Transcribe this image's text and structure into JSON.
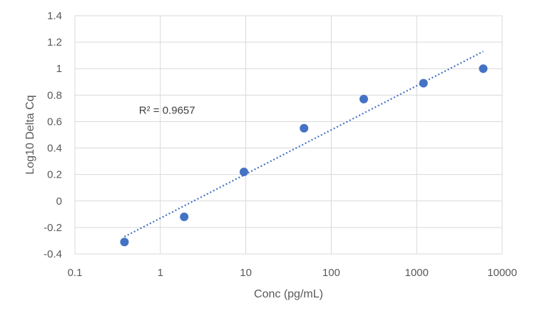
{
  "chart_data": {
    "type": "scatter",
    "title": "",
    "xlabel": "Conc (pg/mL)",
    "ylabel": "Log10 Delta Cq",
    "x_scale": "log",
    "xlim": [
      0.1,
      10000
    ],
    "ylim": [
      -0.4,
      1.4
    ],
    "x_ticks": [
      0.1,
      1,
      10,
      100,
      1000,
      10000
    ],
    "x_tick_labels": [
      "0.1",
      "1",
      "10",
      "100",
      "1000",
      "10000"
    ],
    "y_ticks": [
      -0.4,
      -0.2,
      0,
      0.2,
      0.4,
      0.6,
      0.8,
      1,
      1.2,
      1.4
    ],
    "y_tick_labels": [
      "-0.4",
      "-0.2",
      "0",
      "0.2",
      "0.4",
      "0.6",
      "0.8",
      "1",
      "1.2",
      "1.4"
    ],
    "grid": true,
    "legend": "none",
    "series": [
      {
        "x": [
          0.38,
          1.9,
          9.5,
          48,
          240,
          1200,
          6000
        ],
        "y": [
          -0.31,
          -0.12,
          0.22,
          0.55,
          0.77,
          0.89,
          1.0
        ],
        "color": "#4472C4",
        "marker": "circle"
      }
    ],
    "trendline": {
      "type": "logarithmic",
      "style": "dotted",
      "color": "#4472C4",
      "x": [
        0.38,
        6000
      ],
      "y": [
        -0.27,
        1.13
      ]
    },
    "annotations": [
      {
        "text": "R² = 0.9657",
        "x": 1.0,
        "y": 0.66
      }
    ]
  }
}
